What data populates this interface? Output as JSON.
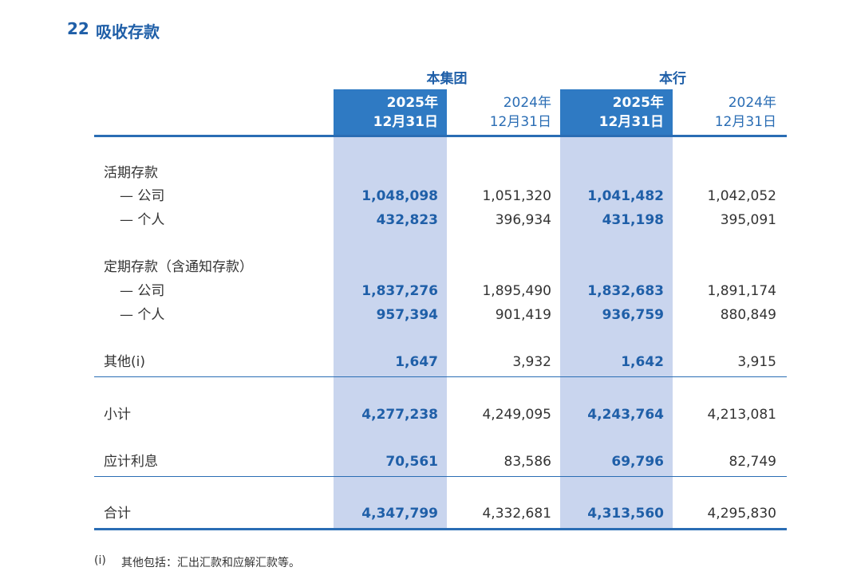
{
  "header": {
    "number": "22",
    "title": "吸收存款"
  },
  "table": {
    "groups": [
      "本集团",
      "本行"
    ],
    "columns": [
      {
        "year": "2025年",
        "date": "12月31日"
      },
      {
        "year": "2024年",
        "date": "12月31日"
      },
      {
        "year": "2025年",
        "date": "12月31日"
      },
      {
        "year": "2024年",
        "date": "12月31日"
      }
    ],
    "rows": [
      {
        "label": "活期存款"
      },
      {
        "label": "— 公司",
        "values": [
          "1,048,098",
          "1,051,320",
          "1,041,482",
          "1,042,052"
        ]
      },
      {
        "label": "— 个人",
        "values": [
          "432,823",
          "396,934",
          "431,198",
          "395,091"
        ]
      },
      {
        "label": "定期存款（含通知存款）"
      },
      {
        "label": "— 公司",
        "values": [
          "1,837,276",
          "1,895,490",
          "1,832,683",
          "1,891,174"
        ]
      },
      {
        "label": "— 个人",
        "values": [
          "957,394",
          "901,419",
          "936,759",
          "880,849"
        ]
      },
      {
        "label": "其他(i)",
        "values": [
          "1,647",
          "3,932",
          "1,642",
          "3,915"
        ]
      },
      {
        "label": "小计",
        "values": [
          "4,277,238",
          "4,249,095",
          "4,243,764",
          "4,213,081"
        ]
      },
      {
        "label": "应计利息",
        "values": [
          "70,561",
          "83,586",
          "69,796",
          "82,749"
        ]
      },
      {
        "label": "合计",
        "values": [
          "4,347,799",
          "4,332,681",
          "4,313,560",
          "4,295,830"
        ]
      }
    ]
  },
  "footnote": {
    "marker": "(i)",
    "text": "其他包括：汇出汇款和应解汇款等。"
  }
}
